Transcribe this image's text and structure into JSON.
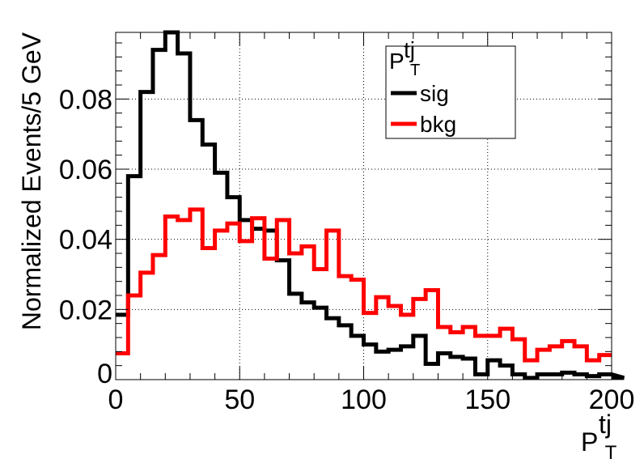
{
  "chart_data": {
    "type": "line",
    "style": "step-histogram",
    "bin_width": 5,
    "xlim": [
      0,
      200
    ],
    "ylim": [
      0,
      0.099
    ],
    "xticks": [
      0,
      50,
      100,
      150,
      200
    ],
    "yticks": [
      0,
      0.02,
      0.04,
      0.06,
      0.08
    ],
    "ytick_labels": [
      "0",
      "0.02",
      "0.04",
      "0.06",
      "0.08"
    ],
    "xlabel_base": "P",
    "xlabel_sub": "T",
    "xlabel_sup": "tj",
    "ylabel": "Normalized Events/5 GeV",
    "grid": true,
    "legend": {
      "title_base": "P",
      "title_sub": "T",
      "title_sup": "tj",
      "placement": "top-right"
    },
    "series": [
      {
        "name": "sig",
        "color": "#000000",
        "values": [
          0.0185,
          0.058,
          0.082,
          0.094,
          0.099,
          0.093,
          0.074,
          0.067,
          0.059,
          0.052,
          0.0455,
          0.043,
          0.0425,
          0.034,
          0.0245,
          0.022,
          0.0205,
          0.0175,
          0.0155,
          0.0125,
          0.01,
          0.008,
          0.0085,
          0.0095,
          0.0125,
          0.0045,
          0.0075,
          0.0065,
          0.006,
          0.0015,
          0.0055,
          0.004,
          0.0015,
          0.0005,
          0.0015,
          0.0015,
          0.002,
          0.0015,
          0.001,
          0.0015,
          0.0015,
          0.0005
        ]
      },
      {
        "name": "bkg",
        "color": "#ff0000",
        "values": [
          0.0075,
          0.024,
          0.0305,
          0.0355,
          0.0465,
          0.0455,
          0.0485,
          0.0375,
          0.0425,
          0.0445,
          0.0395,
          0.046,
          0.0345,
          0.0455,
          0.036,
          0.038,
          0.0315,
          0.0425,
          0.0295,
          0.0285,
          0.019,
          0.0235,
          0.021,
          0.0185,
          0.023,
          0.0255,
          0.015,
          0.0135,
          0.015,
          0.0125,
          0.0125,
          0.0145,
          0.0115,
          0.0055,
          0.0085,
          0.0095,
          0.011,
          0.0095,
          0.0055,
          0.007,
          0.007
        ]
      }
    ]
  }
}
